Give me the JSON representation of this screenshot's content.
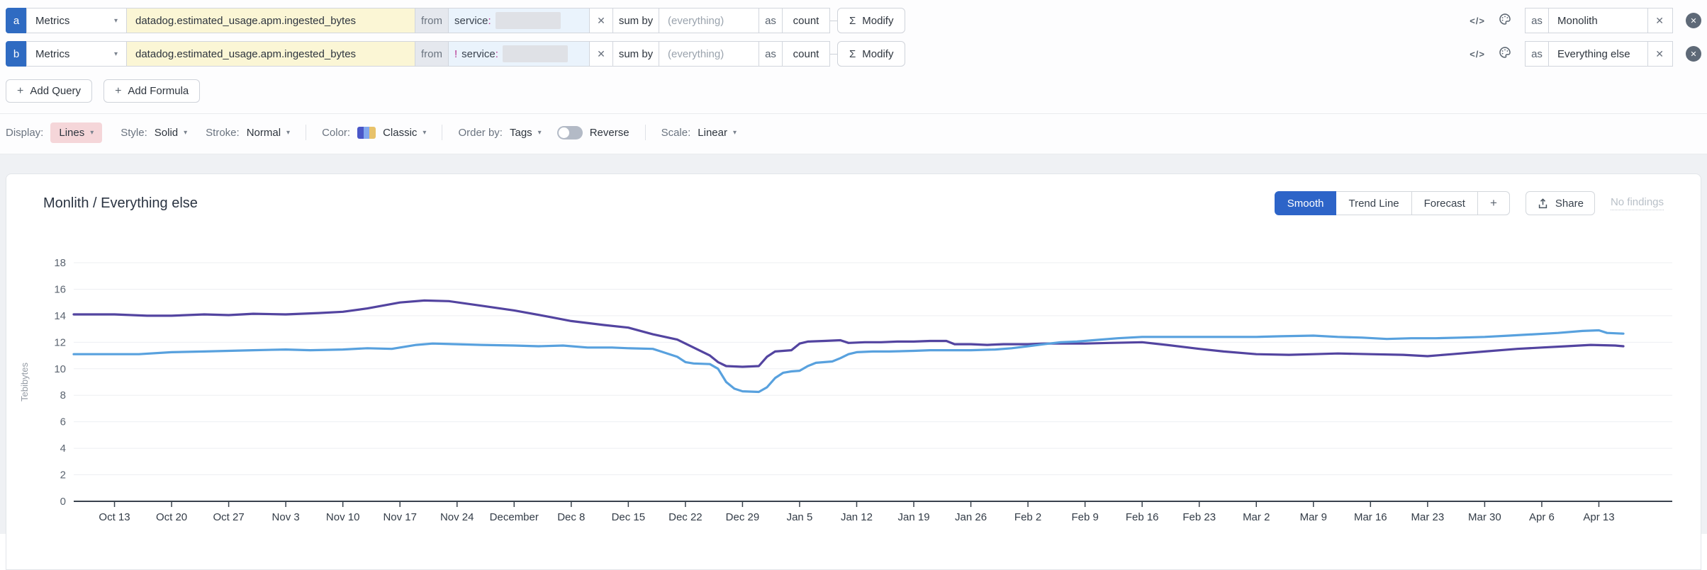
{
  "icons": {
    "code": "</>",
    "sigma": "Σ",
    "caret": "▾",
    "clear": "✕",
    "plus": "+",
    "remove": "✕"
  },
  "queries": [
    {
      "letter": "a",
      "source": "Metrics",
      "metric": "datadog.estimated_usage.apm.ingested_bytes",
      "from_label": "from",
      "filter_prefix": "",
      "filter_key": "service",
      "filter_colon": ":",
      "sum_by_label": "sum by",
      "group_placeholder": "(everything)",
      "as_label": "as",
      "rollup": "count",
      "modify_label": "Modify",
      "alias_as_label": "as",
      "alias": "Monolith"
    },
    {
      "letter": "b",
      "source": "Metrics",
      "metric": "datadog.estimated_usage.apm.ingested_bytes",
      "from_label": "from",
      "filter_prefix": "!",
      "filter_key": "service",
      "filter_colon": ":",
      "sum_by_label": "sum by",
      "group_placeholder": "(everything)",
      "as_label": "as",
      "rollup": "count",
      "modify_label": "Modify",
      "alias_as_label": "as",
      "alias": "Everything else"
    }
  ],
  "toolbar": {
    "add_query": "Add Query",
    "add_formula": "Add Formula"
  },
  "options": {
    "display_label": "Display:",
    "display_value": "Lines",
    "style_label": "Style:",
    "style_value": "Solid",
    "stroke_label": "Stroke:",
    "stroke_value": "Normal",
    "color_label": "Color:",
    "color_value": "Classic",
    "order_label": "Order by:",
    "order_value": "Tags",
    "reverse_label": "Reverse",
    "scale_label": "Scale:",
    "scale_value": "Linear"
  },
  "colors": {
    "series_monolith": "#5344a0",
    "series_everything_else": "#58a1de",
    "active_button_blue": "#2d64c8",
    "query_letter_blue": "#2f6bc2",
    "query_highlight_yellow": "#fbf6d5",
    "filter_chip_blue": "#eaf3fc",
    "display_chip_pink": "#f5d6d9",
    "negation_magenta": "#b5308f",
    "palette_swatch": [
      "#4a57c8",
      "#82a7ee",
      "#e8c26a"
    ]
  },
  "chart": {
    "title": "Monlith / Everything else",
    "buttons": [
      "Smooth",
      "Trend Line",
      "Forecast",
      "+"
    ],
    "active_button": "Smooth",
    "share_label": "Share",
    "no_findings_label": "No findings"
  },
  "chart_data": {
    "type": "line",
    "title": "Monlith / Everything else",
    "xlabel": "",
    "ylabel": "Tebibytes",
    "ylim": [
      0,
      18
    ],
    "ytick_step": 2,
    "grid": true,
    "legend": "none",
    "x_unit": "days since chart start (approx Oct 8)",
    "x_domain": [
      0,
      196
    ],
    "xticks": [
      {
        "day": 5,
        "label": "Oct 13"
      },
      {
        "day": 12,
        "label": "Oct 20"
      },
      {
        "day": 19,
        "label": "Oct 27"
      },
      {
        "day": 26,
        "label": "Nov 3"
      },
      {
        "day": 33,
        "label": "Nov 10"
      },
      {
        "day": 40,
        "label": "Nov 17"
      },
      {
        "day": 47,
        "label": "Nov 24"
      },
      {
        "day": 54,
        "label": "December"
      },
      {
        "day": 61,
        "label": "Dec 8"
      },
      {
        "day": 68,
        "label": "Dec 15"
      },
      {
        "day": 75,
        "label": "Dec 22"
      },
      {
        "day": 82,
        "label": "Dec 29"
      },
      {
        "day": 89,
        "label": "Jan 5"
      },
      {
        "day": 96,
        "label": "Jan 12"
      },
      {
        "day": 103,
        "label": "Jan 19"
      },
      {
        "day": 110,
        "label": "Jan 26"
      },
      {
        "day": 117,
        "label": "Feb 2"
      },
      {
        "day": 124,
        "label": "Feb 9"
      },
      {
        "day": 131,
        "label": "Feb 16"
      },
      {
        "day": 138,
        "label": "Feb 23"
      },
      {
        "day": 145,
        "label": "Mar 2"
      },
      {
        "day": 152,
        "label": "Mar 9"
      },
      {
        "day": 159,
        "label": "Mar 16"
      },
      {
        "day": 166,
        "label": "Mar 23"
      },
      {
        "day": 173,
        "label": "Mar 30"
      },
      {
        "day": 180,
        "label": "Apr 6"
      },
      {
        "day": 187,
        "label": "Apr 13"
      }
    ],
    "series": [
      {
        "name": "Monolith",
        "color": "#5344a0",
        "points": [
          [
            0,
            14.1
          ],
          [
            5,
            14.1
          ],
          [
            9,
            14.0
          ],
          [
            12,
            14.0
          ],
          [
            16,
            14.1
          ],
          [
            19,
            14.05
          ],
          [
            22,
            14.15
          ],
          [
            26,
            14.1
          ],
          [
            30,
            14.2
          ],
          [
            33,
            14.3
          ],
          [
            36,
            14.55
          ],
          [
            40,
            15.0
          ],
          [
            43,
            15.15
          ],
          [
            46,
            15.1
          ],
          [
            50,
            14.75
          ],
          [
            54,
            14.4
          ],
          [
            58,
            13.95
          ],
          [
            61,
            13.6
          ],
          [
            65,
            13.3
          ],
          [
            68,
            13.1
          ],
          [
            71,
            12.6
          ],
          [
            74,
            12.2
          ],
          [
            76,
            11.6
          ],
          [
            78,
            11.0
          ],
          [
            79,
            10.5
          ],
          [
            80,
            10.2
          ],
          [
            82,
            10.15
          ],
          [
            84,
            10.2
          ],
          [
            85,
            10.9
          ],
          [
            86,
            11.3
          ],
          [
            87,
            11.35
          ],
          [
            88,
            11.4
          ],
          [
            89,
            11.9
          ],
          [
            90,
            12.05
          ],
          [
            92,
            12.1
          ],
          [
            94,
            12.15
          ],
          [
            95,
            11.95
          ],
          [
            97,
            12.0
          ],
          [
            99,
            12.0
          ],
          [
            101,
            12.05
          ],
          [
            103,
            12.05
          ],
          [
            105,
            12.1
          ],
          [
            107,
            12.1
          ],
          [
            108,
            11.85
          ],
          [
            110,
            11.85
          ],
          [
            112,
            11.8
          ],
          [
            114,
            11.85
          ],
          [
            117,
            11.85
          ],
          [
            119,
            11.9
          ],
          [
            121,
            11.9
          ],
          [
            124,
            11.9
          ],
          [
            127,
            11.95
          ],
          [
            131,
            12.0
          ],
          [
            134,
            11.8
          ],
          [
            138,
            11.5
          ],
          [
            141,
            11.3
          ],
          [
            145,
            11.1
          ],
          [
            149,
            11.05
          ],
          [
            152,
            11.1
          ],
          [
            155,
            11.15
          ],
          [
            159,
            11.1
          ],
          [
            163,
            11.05
          ],
          [
            166,
            10.95
          ],
          [
            169,
            11.1
          ],
          [
            173,
            11.3
          ],
          [
            177,
            11.5
          ],
          [
            180,
            11.6
          ],
          [
            183,
            11.7
          ],
          [
            186,
            11.8
          ],
          [
            189,
            11.75
          ],
          [
            190,
            11.7
          ]
        ]
      },
      {
        "name": "Everything else",
        "color": "#58a1de",
        "points": [
          [
            0,
            11.1
          ],
          [
            5,
            11.1
          ],
          [
            8,
            11.1
          ],
          [
            12,
            11.25
          ],
          [
            16,
            11.3
          ],
          [
            19,
            11.35
          ],
          [
            22,
            11.4
          ],
          [
            26,
            11.45
          ],
          [
            29,
            11.4
          ],
          [
            33,
            11.45
          ],
          [
            36,
            11.55
          ],
          [
            39,
            11.5
          ],
          [
            42,
            11.8
          ],
          [
            44,
            11.9
          ],
          [
            47,
            11.85
          ],
          [
            50,
            11.8
          ],
          [
            54,
            11.75
          ],
          [
            57,
            11.7
          ],
          [
            60,
            11.75
          ],
          [
            63,
            11.6
          ],
          [
            66,
            11.6
          ],
          [
            68,
            11.55
          ],
          [
            71,
            11.5
          ],
          [
            72,
            11.3
          ],
          [
            74,
            10.9
          ],
          [
            75,
            10.5
          ],
          [
            76,
            10.4
          ],
          [
            78,
            10.35
          ],
          [
            79,
            10.0
          ],
          [
            80,
            9.0
          ],
          [
            81,
            8.5
          ],
          [
            82,
            8.3
          ],
          [
            84,
            8.25
          ],
          [
            85,
            8.6
          ],
          [
            86,
            9.3
          ],
          [
            87,
            9.7
          ],
          [
            88,
            9.8
          ],
          [
            89,
            9.85
          ],
          [
            90,
            10.2
          ],
          [
            91,
            10.45
          ],
          [
            93,
            10.55
          ],
          [
            94,
            10.8
          ],
          [
            95,
            11.1
          ],
          [
            96,
            11.25
          ],
          [
            98,
            11.3
          ],
          [
            100,
            11.3
          ],
          [
            103,
            11.35
          ],
          [
            105,
            11.4
          ],
          [
            107,
            11.4
          ],
          [
            110,
            11.4
          ],
          [
            113,
            11.45
          ],
          [
            115,
            11.55
          ],
          [
            117,
            11.7
          ],
          [
            119,
            11.85
          ],
          [
            121,
            12.0
          ],
          [
            123,
            12.05
          ],
          [
            125,
            12.15
          ],
          [
            128,
            12.3
          ],
          [
            131,
            12.4
          ],
          [
            134,
            12.4
          ],
          [
            138,
            12.4
          ],
          [
            141,
            12.4
          ],
          [
            145,
            12.4
          ],
          [
            148,
            12.45
          ],
          [
            152,
            12.5
          ],
          [
            155,
            12.4
          ],
          [
            158,
            12.35
          ],
          [
            161,
            12.25
          ],
          [
            164,
            12.3
          ],
          [
            167,
            12.3
          ],
          [
            170,
            12.35
          ],
          [
            173,
            12.4
          ],
          [
            176,
            12.5
          ],
          [
            179,
            12.6
          ],
          [
            182,
            12.7
          ],
          [
            185,
            12.85
          ],
          [
            187,
            12.9
          ],
          [
            188,
            12.7
          ],
          [
            190,
            12.65
          ]
        ]
      }
    ]
  }
}
